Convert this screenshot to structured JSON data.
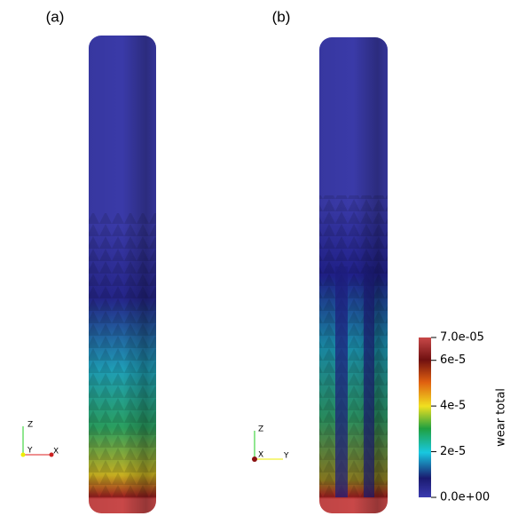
{
  "panels": [
    {
      "label": "(a)",
      "triad": {
        "z": "Z",
        "second": "Y",
        "third": "X"
      }
    },
    {
      "label": "(b)",
      "triad": {
        "z": "Z",
        "second": "X",
        "third": "Y"
      }
    }
  ],
  "colorbar": {
    "title": "wear total",
    "ticks": [
      {
        "value": 0,
        "label": "0.0e+00"
      },
      {
        "value": 2e-05,
        "label": "2e-5"
      },
      {
        "value": 4e-05,
        "label": "4e-5"
      },
      {
        "value": 6e-05,
        "label": "6e-5"
      },
      {
        "value": 7e-05,
        "label": "7.0e-05"
      }
    ]
  }
}
